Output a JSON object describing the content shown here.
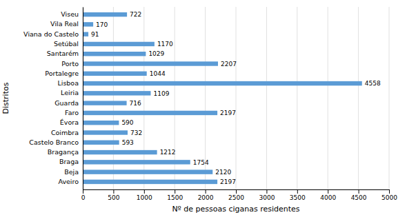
{
  "chart_data": {
    "type": "bar",
    "orientation": "horizontal",
    "categories": [
      "Aveiro",
      "Beja",
      "Braga",
      "Bragança",
      "Castelo Branco",
      "Coimbra",
      "Évora",
      "Faro",
      "Guarda",
      "Leiria",
      "Lisboa",
      "Portalegre",
      "Porto",
      "Santarém",
      "Setúbal",
      "Viana do Castelo",
      "Vila Real",
      "Viseu"
    ],
    "values": [
      2197,
      2120,
      1754,
      1212,
      593,
      732,
      590,
      2197,
      716,
      1109,
      4558,
      1044,
      2207,
      1029,
      1170,
      91,
      170,
      722
    ],
    "color": "#5b9bd5",
    "xlabel": "Nº de pessoas ciganas residentes",
    "ylabel": "Distritos",
    "xlim": [
      0,
      5000
    ],
    "xticks": [
      0,
      500,
      1000,
      1500,
      2000,
      2500,
      3000,
      3500,
      4000,
      4500,
      5000
    ],
    "grid": true,
    "data_labels": true
  }
}
